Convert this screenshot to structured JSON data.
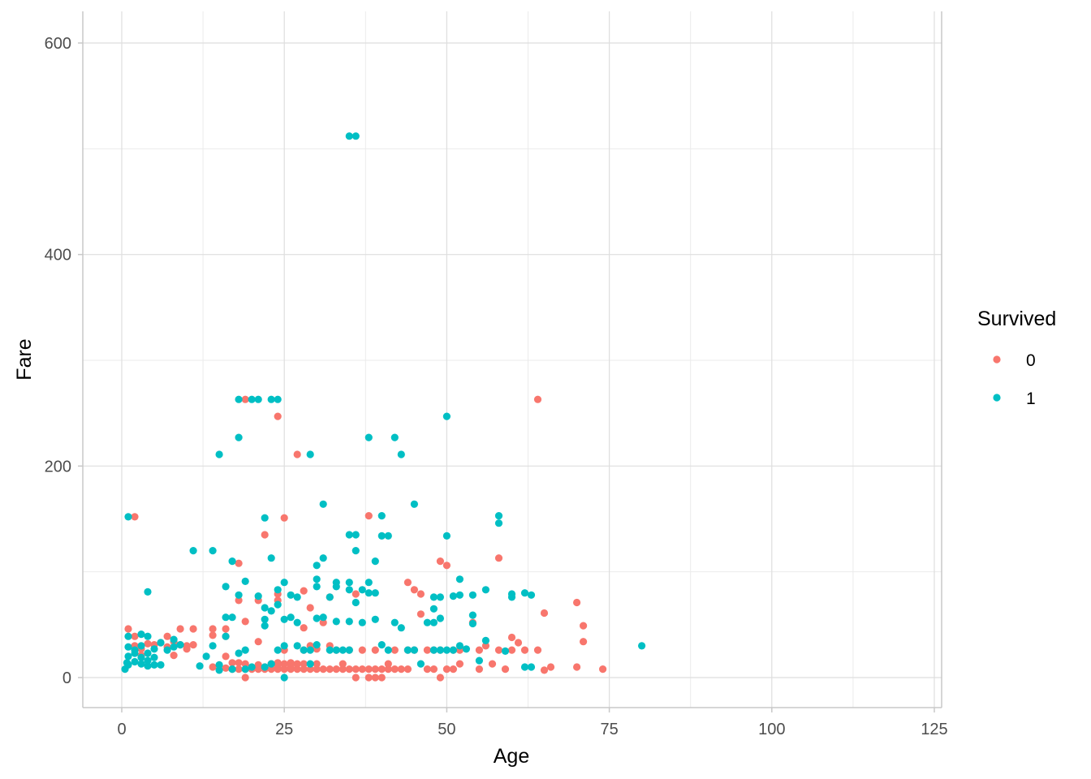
{
  "chart_data": {
    "type": "scatter",
    "xlabel": "Age",
    "ylabel": "Fare",
    "xlim": [
      -5,
      127
    ],
    "ylim": [
      -30,
      632
    ],
    "x_ticks": [
      0,
      25,
      50,
      75,
      100,
      125
    ],
    "x_tick_labels": [
      "0",
      "25",
      "50",
      "75",
      "100",
      "125"
    ],
    "y_ticks": [
      0,
      200,
      400,
      600
    ],
    "y_tick_labels": [
      "0",
      "200",
      "400",
      "600"
    ],
    "grid": true,
    "legend": {
      "title": "Survived",
      "position": "right"
    },
    "series": [
      {
        "name": "0",
        "color": "#F8766D",
        "points": [
          [
            1,
            46
          ],
          [
            2,
            152
          ],
          [
            2,
            39
          ],
          [
            2,
            30
          ],
          [
            3,
            27
          ],
          [
            3,
            21
          ],
          [
            4,
            32
          ],
          [
            5,
            31
          ],
          [
            6,
            33
          ],
          [
            7,
            39
          ],
          [
            7,
            29
          ],
          [
            8,
            21
          ],
          [
            8,
            34
          ],
          [
            9,
            46
          ],
          [
            9,
            31
          ],
          [
            10,
            27
          ],
          [
            10,
            30
          ],
          [
            11,
            46
          ],
          [
            11,
            31
          ],
          [
            14,
            40
          ],
          [
            14,
            46
          ],
          [
            14,
            10
          ],
          [
            16,
            46
          ],
          [
            16,
            39
          ],
          [
            16,
            20
          ],
          [
            16,
            9
          ],
          [
            17,
            8
          ],
          [
            17,
            14
          ],
          [
            18,
            108
          ],
          [
            18,
            73
          ],
          [
            18,
            8
          ],
          [
            18,
            14
          ],
          [
            19,
            263
          ],
          [
            19,
            53
          ],
          [
            19,
            8
          ],
          [
            19,
            0
          ],
          [
            19,
            13
          ],
          [
            20,
            9
          ],
          [
            20,
            8
          ],
          [
            21,
            73
          ],
          [
            21,
            34
          ],
          [
            21,
            8
          ],
          [
            21,
            12
          ],
          [
            22,
            135
          ],
          [
            22,
            8
          ],
          [
            22,
            10
          ],
          [
            23,
            8
          ],
          [
            23,
            13
          ],
          [
            24,
            247
          ],
          [
            24,
            79
          ],
          [
            24,
            73
          ],
          [
            24,
            8
          ],
          [
            24,
            14
          ],
          [
            24,
            10
          ],
          [
            25,
            151
          ],
          [
            25,
            8
          ],
          [
            25,
            13
          ],
          [
            25,
            26
          ],
          [
            26,
            8
          ],
          [
            26,
            14
          ],
          [
            26,
            10
          ],
          [
            27,
            211
          ],
          [
            27,
            8
          ],
          [
            27,
            13
          ],
          [
            28,
            82
          ],
          [
            28,
            47
          ],
          [
            28,
            8
          ],
          [
            28,
            26
          ],
          [
            28,
            13
          ],
          [
            29,
            66
          ],
          [
            29,
            8
          ],
          [
            29,
            30
          ],
          [
            30,
            8
          ],
          [
            30,
            27
          ],
          [
            30,
            13
          ],
          [
            31,
            8
          ],
          [
            31,
            52
          ],
          [
            32,
            76
          ],
          [
            32,
            8
          ],
          [
            32,
            30
          ],
          [
            33,
            8
          ],
          [
            33,
            26
          ],
          [
            34,
            8
          ],
          [
            34,
            13
          ],
          [
            35,
            8
          ],
          [
            35,
            26
          ],
          [
            36,
            79
          ],
          [
            36,
            8
          ],
          [
            36,
            0
          ],
          [
            37,
            8
          ],
          [
            37,
            26
          ],
          [
            38,
            153
          ],
          [
            38,
            8
          ],
          [
            38,
            0
          ],
          [
            39,
            26
          ],
          [
            39,
            8
          ],
          [
            39,
            0
          ],
          [
            40,
            8
          ],
          [
            40,
            0
          ],
          [
            41,
            8
          ],
          [
            41,
            13
          ],
          [
            42,
            8
          ],
          [
            42,
            26
          ],
          [
            43,
            8
          ],
          [
            44,
            90
          ],
          [
            44,
            26
          ],
          [
            44,
            8
          ],
          [
            45,
            83
          ],
          [
            45,
            26
          ],
          [
            46,
            79
          ],
          [
            46,
            60
          ],
          [
            47,
            26
          ],
          [
            47,
            8
          ],
          [
            48,
            26
          ],
          [
            48,
            8
          ],
          [
            49,
            110
          ],
          [
            49,
            0
          ],
          [
            49,
            26
          ],
          [
            50,
            106
          ],
          [
            50,
            8
          ],
          [
            51,
            8
          ],
          [
            51,
            26
          ],
          [
            52,
            26
          ],
          [
            52,
            13
          ],
          [
            54,
            52
          ],
          [
            55,
            26
          ],
          [
            55,
            8
          ],
          [
            56,
            30
          ],
          [
            57,
            13
          ],
          [
            58,
            113
          ],
          [
            58,
            26
          ],
          [
            59,
            8
          ],
          [
            60,
            38
          ],
          [
            60,
            26
          ],
          [
            61,
            33
          ],
          [
            62,
            26
          ],
          [
            64,
            263
          ],
          [
            64,
            26
          ],
          [
            65,
            61
          ],
          [
            65,
            7
          ],
          [
            66,
            10
          ],
          [
            70,
            71
          ],
          [
            70,
            10
          ],
          [
            71,
            49
          ],
          [
            71,
            34
          ],
          [
            74,
            8
          ]
        ]
      },
      {
        "name": "1",
        "color": "#00BFC4",
        "points": [
          [
            0.5,
            8
          ],
          [
            0.8,
            14
          ],
          [
            1,
            152
          ],
          [
            1,
            39
          ],
          [
            1,
            29
          ],
          [
            1,
            20
          ],
          [
            1,
            12
          ],
          [
            2,
            23
          ],
          [
            2,
            26
          ],
          [
            2,
            15
          ],
          [
            3,
            41
          ],
          [
            3,
            19
          ],
          [
            3,
            30
          ],
          [
            3,
            13
          ],
          [
            4,
            81
          ],
          [
            4,
            39
          ],
          [
            4,
            23
          ],
          [
            4,
            16
          ],
          [
            4,
            11
          ],
          [
            5,
            27
          ],
          [
            5,
            19
          ],
          [
            5,
            12
          ],
          [
            6,
            33
          ],
          [
            6,
            12
          ],
          [
            7,
            26
          ],
          [
            8,
            36
          ],
          [
            8,
            29
          ],
          [
            9,
            31
          ],
          [
            11,
            120
          ],
          [
            12,
            11
          ],
          [
            13,
            20
          ],
          [
            14,
            120
          ],
          [
            14,
            30
          ],
          [
            15,
            211
          ],
          [
            15,
            12
          ],
          [
            15,
            7
          ],
          [
            16,
            86
          ],
          [
            16,
            57
          ],
          [
            16,
            39
          ],
          [
            17,
            110
          ],
          [
            17,
            57
          ],
          [
            17,
            8
          ],
          [
            18,
            263
          ],
          [
            18,
            227
          ],
          [
            18,
            78
          ],
          [
            18,
            23
          ],
          [
            19,
            91
          ],
          [
            19,
            26
          ],
          [
            19,
            8
          ],
          [
            20,
            263
          ],
          [
            20,
            10
          ],
          [
            21,
            263
          ],
          [
            21,
            77
          ],
          [
            22,
            151
          ],
          [
            22,
            66
          ],
          [
            22,
            55
          ],
          [
            22,
            49
          ],
          [
            22,
            10
          ],
          [
            23,
            263
          ],
          [
            23,
            113
          ],
          [
            23,
            63
          ],
          [
            23,
            13
          ],
          [
            24,
            263
          ],
          [
            24,
            83
          ],
          [
            24,
            69
          ],
          [
            24,
            26
          ],
          [
            25,
            90
          ],
          [
            25,
            55
          ],
          [
            25,
            30
          ],
          [
            25,
            0
          ],
          [
            26,
            78
          ],
          [
            26,
            57
          ],
          [
            27,
            76
          ],
          [
            27,
            52
          ],
          [
            27,
            30
          ],
          [
            28,
            26
          ],
          [
            29,
            211
          ],
          [
            29,
            26
          ],
          [
            29,
            13
          ],
          [
            30,
            106
          ],
          [
            30,
            93
          ],
          [
            30,
            86
          ],
          [
            30,
            56
          ],
          [
            30,
            31
          ],
          [
            31,
            164
          ],
          [
            31,
            113
          ],
          [
            31,
            57
          ],
          [
            32,
            76
          ],
          [
            32,
            26
          ],
          [
            33,
            90
          ],
          [
            33,
            86
          ],
          [
            33,
            53
          ],
          [
            33,
            26
          ],
          [
            34,
            26
          ],
          [
            35,
            512
          ],
          [
            35,
            135
          ],
          [
            35,
            90
          ],
          [
            35,
            83
          ],
          [
            35,
            53
          ],
          [
            35,
            26
          ],
          [
            36,
            512
          ],
          [
            36,
            135
          ],
          [
            36,
            120
          ],
          [
            36,
            71
          ],
          [
            37,
            83
          ],
          [
            37,
            52
          ],
          [
            38,
            227
          ],
          [
            38,
            90
          ],
          [
            38,
            80
          ],
          [
            39,
            110
          ],
          [
            39,
            80
          ],
          [
            39,
            55
          ],
          [
            40,
            153
          ],
          [
            40,
            134
          ],
          [
            40,
            31
          ],
          [
            41,
            134
          ],
          [
            41,
            26
          ],
          [
            42,
            227
          ],
          [
            42,
            52
          ],
          [
            43,
            211
          ],
          [
            43,
            47
          ],
          [
            44,
            26
          ],
          [
            45,
            164
          ],
          [
            45,
            26
          ],
          [
            46,
            13
          ],
          [
            47,
            52
          ],
          [
            48,
            76
          ],
          [
            48,
            65
          ],
          [
            48,
            52
          ],
          [
            48,
            26
          ],
          [
            49,
            76
          ],
          [
            49,
            56
          ],
          [
            49,
            26
          ],
          [
            50,
            247
          ],
          [
            50,
            134
          ],
          [
            50,
            26
          ],
          [
            51,
            77
          ],
          [
            51,
            26
          ],
          [
            52,
            93
          ],
          [
            52,
            78
          ],
          [
            52,
            30
          ],
          [
            53,
            27
          ],
          [
            54,
            78
          ],
          [
            54,
            59
          ],
          [
            54,
            51
          ],
          [
            55,
            16
          ],
          [
            56,
            83
          ],
          [
            56,
            35
          ],
          [
            58,
            153
          ],
          [
            58,
            146
          ],
          [
            59,
            25
          ],
          [
            60,
            79
          ],
          [
            60,
            76
          ],
          [
            62,
            80
          ],
          [
            62,
            10
          ],
          [
            63,
            78
          ],
          [
            63,
            10
          ],
          [
            80,
            30
          ]
        ]
      }
    ]
  }
}
